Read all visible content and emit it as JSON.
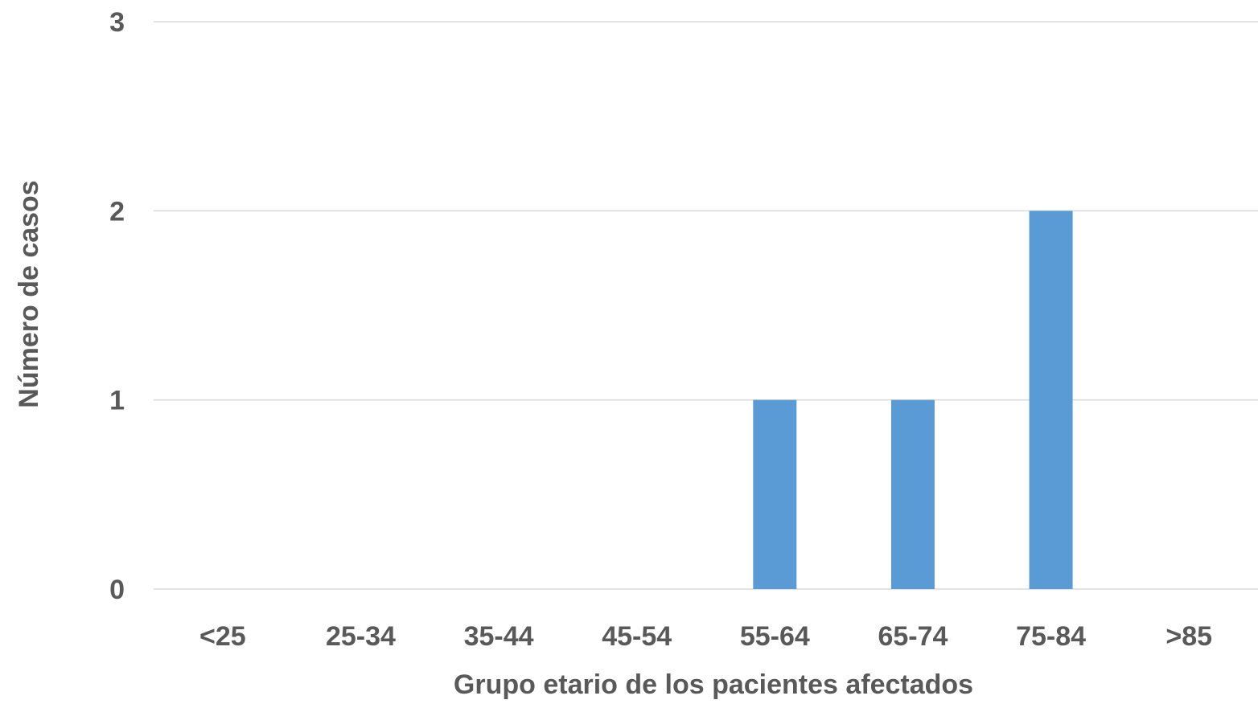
{
  "chart_data": {
    "type": "bar",
    "title": "",
    "xlabel": "Grupo etario de los pacientes afectados",
    "ylabel": "Número de casos",
    "categories": [
      "<25",
      "25-34",
      "35-44",
      "45-54",
      "55-64",
      "65-74",
      "75-84",
      ">85"
    ],
    "values": [
      0,
      0,
      0,
      0,
      1,
      1,
      2,
      0
    ],
    "ylim": [
      0,
      3
    ],
    "yticks": [
      "0",
      "1",
      "2",
      "3"
    ],
    "grid": true,
    "legend": "none",
    "bar_color": "#5b9bd5",
    "grid_color": "#d9d9d9",
    "text_color": "#595959"
  }
}
